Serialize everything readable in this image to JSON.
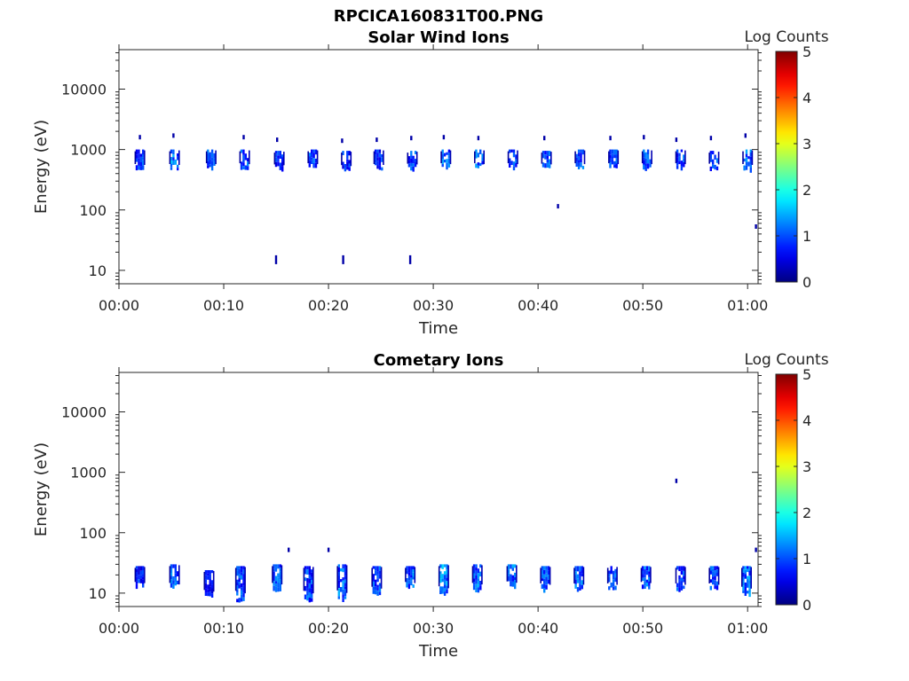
{
  "figure": {
    "title": "RPCICA160831T00.PNG"
  },
  "colorbar": {
    "label": "Log Counts",
    "ticks": [
      "0",
      "1",
      "2",
      "3",
      "4",
      "5"
    ],
    "range": [
      0,
      5
    ],
    "colormap": "jet"
  },
  "chart_data": [
    {
      "type": "heatmap",
      "title": "Solar Wind Ions",
      "xlabel": "Time",
      "ylabel": "Energy (eV)",
      "xlim_minutes": [
        0,
        61
      ],
      "x_ticks": [
        "00:00",
        "00:10",
        "00:20",
        "00:30",
        "00:40",
        "00:50",
        "01:00"
      ],
      "y_scale": "log",
      "ylim": [
        6,
        45000
      ],
      "y_ticks": [
        "10",
        "100",
        "1000",
        "10000"
      ],
      "bursts": [
        {
          "t": 2.0,
          "emin": 500,
          "emax": 1000,
          "c": 0.7
        },
        {
          "t": 5.3,
          "emin": 500,
          "emax": 1000,
          "c": 0.9
        },
        {
          "t": 8.8,
          "emin": 520,
          "emax": 1000,
          "c": 0.7
        },
        {
          "t": 12.0,
          "emin": 520,
          "emax": 1000,
          "c": 0.7
        },
        {
          "t": 15.3,
          "emin": 500,
          "emax": 950,
          "c": 0.6
        },
        {
          "t": 18.5,
          "emin": 520,
          "emax": 1000,
          "c": 0.7
        },
        {
          "t": 21.7,
          "emin": 480,
          "emax": 950,
          "c": 0.6
        },
        {
          "t": 24.8,
          "emin": 500,
          "emax": 1000,
          "c": 0.6
        },
        {
          "t": 28.0,
          "emin": 520,
          "emax": 950,
          "c": 0.7
        },
        {
          "t": 31.2,
          "emin": 520,
          "emax": 1000,
          "c": 0.8
        },
        {
          "t": 34.4,
          "emin": 520,
          "emax": 1000,
          "c": 0.8
        },
        {
          "t": 37.6,
          "emin": 520,
          "emax": 1000,
          "c": 0.7
        },
        {
          "t": 40.8,
          "emin": 520,
          "emax": 950,
          "c": 0.7
        },
        {
          "t": 44.0,
          "emin": 520,
          "emax": 1000,
          "c": 0.8
        },
        {
          "t": 47.2,
          "emin": 520,
          "emax": 1000,
          "c": 0.7
        },
        {
          "t": 50.4,
          "emin": 520,
          "emax": 1000,
          "c": 0.7
        },
        {
          "t": 53.6,
          "emin": 520,
          "emax": 1000,
          "c": 0.7
        },
        {
          "t": 56.8,
          "emin": 520,
          "emax": 950,
          "c": 0.7
        },
        {
          "t": 60.0,
          "emin": 500,
          "emax": 1000,
          "c": 0.8
        }
      ],
      "specks": [
        {
          "t": 2.0,
          "e": 1600
        },
        {
          "t": 5.2,
          "e": 1700
        },
        {
          "t": 11.9,
          "e": 1600
        },
        {
          "t": 15.1,
          "e": 1450
        },
        {
          "t": 21.3,
          "e": 1400
        },
        {
          "t": 24.6,
          "e": 1450
        },
        {
          "t": 27.9,
          "e": 1550
        },
        {
          "t": 31.0,
          "e": 1600
        },
        {
          "t": 34.3,
          "e": 1550
        },
        {
          "t": 40.6,
          "e": 1550
        },
        {
          "t": 46.9,
          "e": 1550
        },
        {
          "t": 50.1,
          "e": 1600
        },
        {
          "t": 53.2,
          "e": 1450
        },
        {
          "t": 56.5,
          "e": 1550
        },
        {
          "t": 59.8,
          "e": 1700
        },
        {
          "t": 41.9,
          "e": 115
        },
        {
          "t": 60.8,
          "e": 53
        },
        {
          "t": 15.0,
          "e": 15
        },
        {
          "t": 21.4,
          "e": 15
        },
        {
          "t": 27.8,
          "e": 15
        }
      ]
    },
    {
      "type": "heatmap",
      "title": "Cometary Ions",
      "xlabel": "Time",
      "ylabel": "Energy (eV)",
      "xlim_minutes": [
        0,
        61
      ],
      "x_ticks": [
        "00:00",
        "00:10",
        "00:20",
        "00:30",
        "00:40",
        "00:50",
        "01:00"
      ],
      "y_scale": "log",
      "y_ticks": [
        "10",
        "100",
        "1000",
        "10000"
      ],
      "ylim": [
        6,
        45000
      ],
      "bursts": [
        {
          "t": 2.0,
          "emin": 13,
          "emax": 28,
          "c": 0.6
        },
        {
          "t": 5.3,
          "emin": 12,
          "emax": 30,
          "c": 0.8
        },
        {
          "t": 8.6,
          "emin": 9,
          "emax": 24,
          "c": 0.5
        },
        {
          "t": 11.6,
          "emin": 8,
          "emax": 28,
          "c": 0.7
        },
        {
          "t": 15.1,
          "emin": 12,
          "emax": 30,
          "c": 0.8
        },
        {
          "t": 18.1,
          "emin": 8,
          "emax": 28,
          "c": 0.7
        },
        {
          "t": 21.3,
          "emin": 8,
          "emax": 30,
          "c": 0.8
        },
        {
          "t": 24.6,
          "emin": 10,
          "emax": 28,
          "c": 0.7
        },
        {
          "t": 27.8,
          "emin": 13,
          "emax": 28,
          "c": 0.8
        },
        {
          "t": 31.0,
          "emin": 10,
          "emax": 30,
          "c": 0.9
        },
        {
          "t": 34.2,
          "emin": 12,
          "emax": 30,
          "c": 0.8
        },
        {
          "t": 37.5,
          "emin": 13,
          "emax": 30,
          "c": 0.8
        },
        {
          "t": 40.7,
          "emin": 12,
          "emax": 28,
          "c": 0.7
        },
        {
          "t": 43.9,
          "emin": 12,
          "emax": 28,
          "c": 0.8
        },
        {
          "t": 47.1,
          "emin": 12,
          "emax": 28,
          "c": 0.7
        },
        {
          "t": 50.3,
          "emin": 13,
          "emax": 28,
          "c": 0.8
        },
        {
          "t": 53.6,
          "emin": 12,
          "emax": 28,
          "c": 0.7
        },
        {
          "t": 56.8,
          "emin": 12,
          "emax": 28,
          "c": 0.7
        },
        {
          "t": 59.9,
          "emin": 10,
          "emax": 28,
          "c": 0.8
        }
      ],
      "specks": [
        {
          "t": 16.2,
          "e": 52
        },
        {
          "t": 20.0,
          "e": 52
        },
        {
          "t": 53.2,
          "e": 720
        },
        {
          "t": 60.8,
          "e": 52
        }
      ]
    }
  ]
}
